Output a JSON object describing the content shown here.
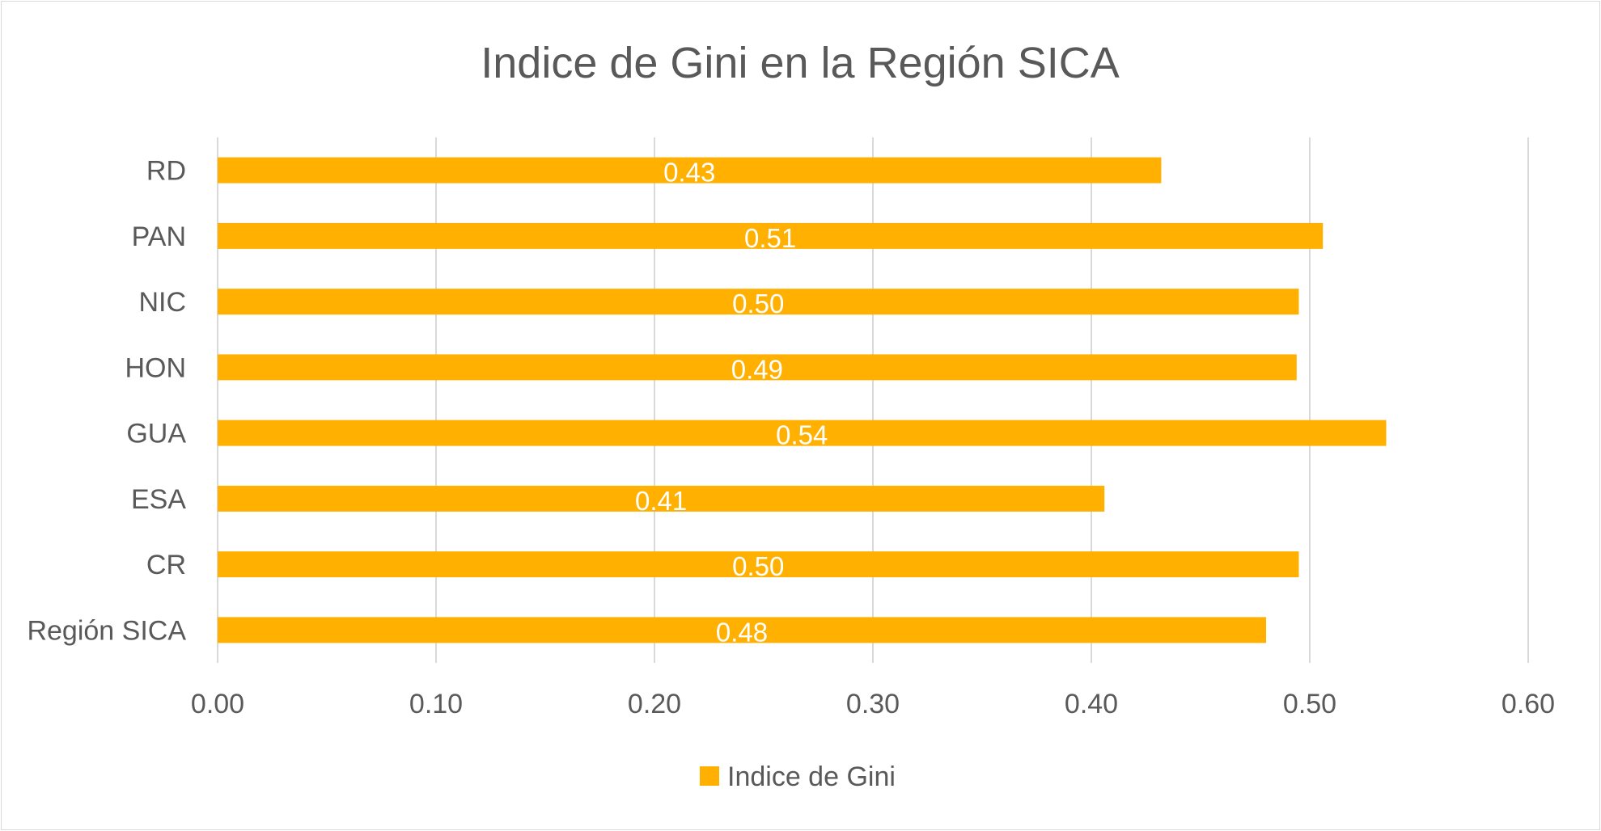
{
  "chart_data": {
    "type": "bar",
    "orientation": "horizontal",
    "title": "Indice de Gini en la Región SICA",
    "xlabel": "",
    "ylabel": "",
    "categories": [
      "RD",
      "PAN",
      "NIC",
      "HON",
      "GUA",
      "ESA",
      "CR",
      "Región SICA"
    ],
    "series": [
      {
        "name": "Indice de Gini",
        "values": [
          0.432,
          0.506,
          0.495,
          0.494,
          0.535,
          0.406,
          0.495,
          0.48
        ],
        "data_labels": [
          "0.43",
          "0.51",
          "0.50",
          "0.49",
          "0.54",
          "0.41",
          "0.50",
          "0.48"
        ],
        "color": "#FFB000"
      }
    ],
    "xlim": [
      0,
      0.6
    ],
    "x_ticks": [
      "0.00",
      "0.10",
      "0.20",
      "0.30",
      "0.40",
      "0.50",
      "0.60"
    ],
    "x_tick_values": [
      0,
      0.1,
      0.2,
      0.3,
      0.4,
      0.5,
      0.6
    ],
    "grid": true,
    "legend_position": "bottom"
  }
}
